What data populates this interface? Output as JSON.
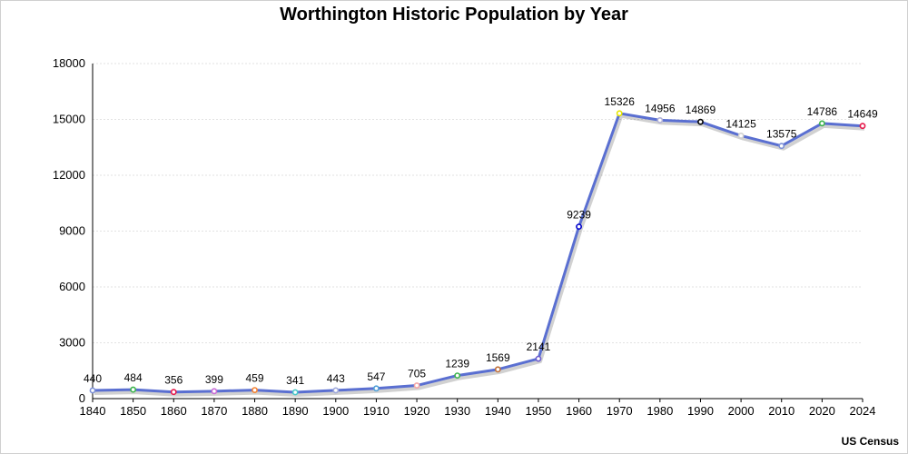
{
  "chart_data": {
    "type": "line",
    "title": "Worthington Historic Population by Year",
    "xlabel": "",
    "ylabel": "",
    "source": "US Census",
    "categories": [
      "1840",
      "1850",
      "1860",
      "1870",
      "1880",
      "1890",
      "1900",
      "1910",
      "1920",
      "1930",
      "1940",
      "1950",
      "1960",
      "1970",
      "1980",
      "1990",
      "2000",
      "2010",
      "2020",
      "2024"
    ],
    "values": [
      440,
      484,
      356,
      399,
      459,
      341,
      443,
      547,
      705,
      1239,
      1569,
      2141,
      9239,
      15326,
      14956,
      14869,
      14125,
      13575,
      14786,
      14649
    ],
    "ylim": [
      0,
      18000
    ],
    "yticks": [
      0,
      3000,
      6000,
      9000,
      12000,
      15000,
      18000
    ],
    "grid": true,
    "line_color": "#5a6fd1",
    "point_colors": [
      "#7b8fd6",
      "#3cb44b",
      "#e6194b",
      "#c86bd6",
      "#f58231",
      "#46c8c8",
      "#9fa8da",
      "#4f9fd6",
      "#f4a6a6",
      "#3cb44b",
      "#c0703a",
      "#6a5acd",
      "#0000cc",
      "#e6e600",
      "#b0b0d8",
      "#000000",
      "#d0d0d0",
      "#7b8fd6",
      "#3cb44b",
      "#e6194b"
    ]
  }
}
